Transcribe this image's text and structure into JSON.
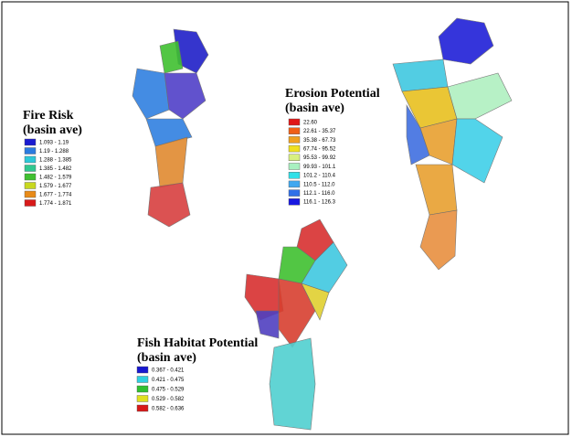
{
  "maps": [
    {
      "title": "Fire Risk",
      "subtitle": "(basin ave)",
      "legend": [
        {
          "label": "1.093 - 1.19",
          "color": "#1a1ad0"
        },
        {
          "label": "1.19 - 1.288",
          "color": "#2c7be0"
        },
        {
          "label": "1.288 - 1.385",
          "color": "#2ec8d8"
        },
        {
          "label": "1.385 - 1.482",
          "color": "#30c890"
        },
        {
          "label": "1.482 - 1.579",
          "color": "#40c030"
        },
        {
          "label": "1.579 - 1.677",
          "color": "#c8d820"
        },
        {
          "label": "1.677 - 1.774",
          "color": "#e88a18"
        },
        {
          "label": "1.774 - 1.871",
          "color": "#d81a1a"
        }
      ]
    },
    {
      "title": "Erosion Potential",
      "subtitle": "(basin ave)",
      "legend": [
        {
          "label": "22.60",
          "color": "#e01818"
        },
        {
          "label": "22.61 - 35.37",
          "color": "#f06018"
        },
        {
          "label": "35.38 - 67.73",
          "color": "#f0a020"
        },
        {
          "label": "67.74 - 95.52",
          "color": "#f0e020"
        },
        {
          "label": "95.53 - 99.92",
          "color": "#d8f080"
        },
        {
          "label": "99.93 - 101.1",
          "color": "#a8f0c0"
        },
        {
          "label": "101.2 - 110.4",
          "color": "#30e0e8"
        },
        {
          "label": "110.5 - 112.0",
          "color": "#40a8f0"
        },
        {
          "label": "112.1 - 116.0",
          "color": "#3070e8"
        },
        {
          "label": "116.1 - 126.3",
          "color": "#1818e0"
        }
      ]
    },
    {
      "title": "Fish Habitat Potential",
      "subtitle": "(basin ave)",
      "legend": [
        {
          "label": "0.367 - 0.421",
          "color": "#1818d0"
        },
        {
          "label": "0.421 - 0.475",
          "color": "#30d0e0"
        },
        {
          "label": "0.475 - 0.529",
          "color": "#30c030"
        },
        {
          "label": "0.529 - 0.582",
          "color": "#e0e020"
        },
        {
          "label": "0.582 - 0.636",
          "color": "#d81818"
        }
      ]
    }
  ]
}
